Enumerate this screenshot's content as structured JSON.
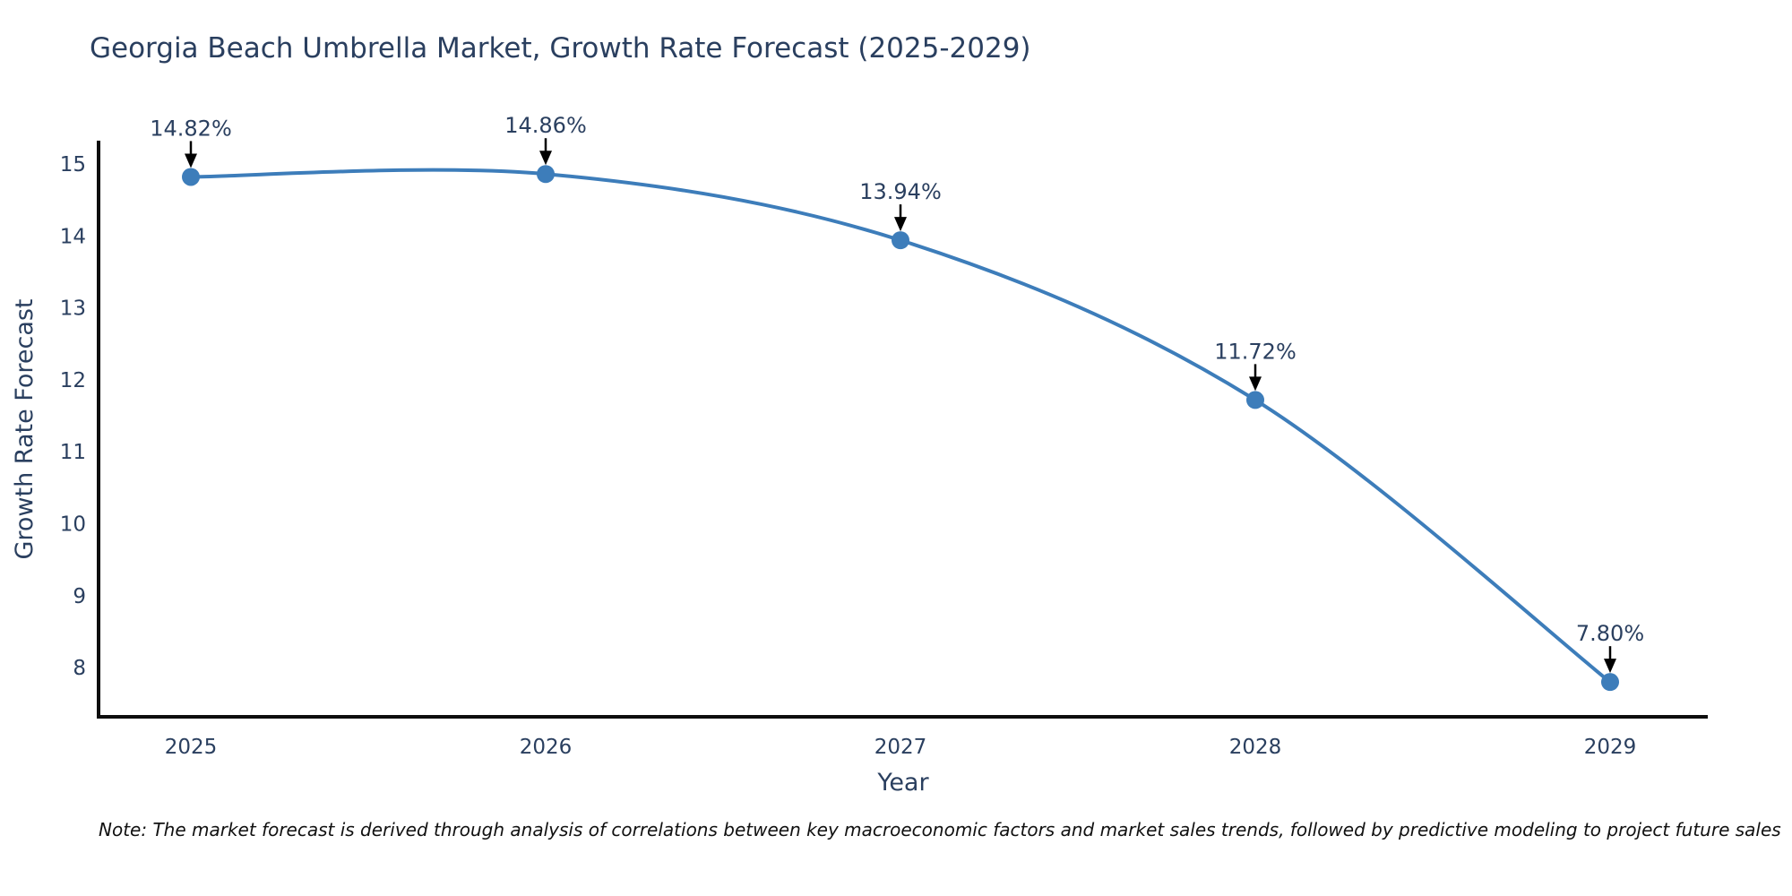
{
  "note": "Note: The market forecast is derived through analysis of correlations between key macroeconomic factors and market sales trends, followed by predictive modeling to project future sales",
  "chart_data": {
    "type": "line",
    "title": "Georgia Beach Umbrella Market, Growth Rate Forecast (2025-2029)",
    "xlabel": "Year",
    "ylabel": "Growth Rate Forecast",
    "x": [
      2025,
      2026,
      2027,
      2028,
      2029
    ],
    "y": [
      14.82,
      14.86,
      13.94,
      11.72,
      7.8
    ],
    "point_labels": [
      "14.82%",
      "14.86%",
      "13.94%",
      "11.72%",
      "7.80%"
    ],
    "xticks": [
      "2025",
      "2026",
      "2027",
      "2028",
      "2029"
    ],
    "yticks": [
      8,
      9,
      10,
      11,
      12,
      13,
      14,
      15
    ],
    "xlim": [
      2024.74,
      2029.27
    ],
    "ylim": [
      7.3,
      15.33
    ],
    "line_shape": "spline",
    "grid": false,
    "legend": "none",
    "colors": {
      "line": "#3d7dba",
      "marker": "#3d7dba",
      "text": "#2a3f5f",
      "arrow": "#000000",
      "axis": "#0d0d0d",
      "background": "#ffffff"
    }
  }
}
